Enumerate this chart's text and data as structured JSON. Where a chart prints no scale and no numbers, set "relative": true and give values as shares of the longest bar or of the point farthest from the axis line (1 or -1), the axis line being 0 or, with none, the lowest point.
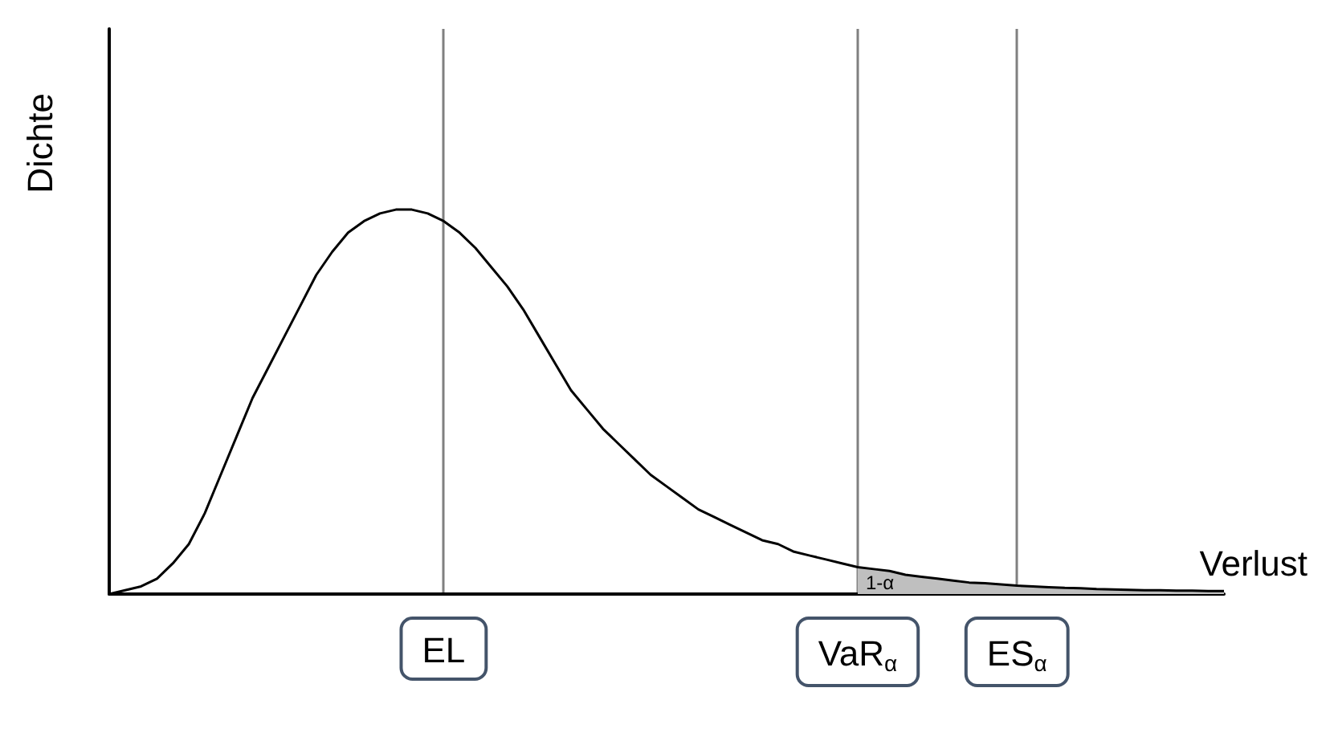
{
  "chart_data": {
    "type": "line",
    "relative": true,
    "xlabel": "Verlust",
    "ylabel": "Dichte",
    "categories": [
      null,
      null,
      null,
      null,
      null,
      null,
      null,
      null,
      null,
      null,
      null,
      null,
      null,
      null,
      null,
      null,
      null,
      null,
      null,
      null,
      null,
      "EL",
      null,
      null,
      null,
      null,
      null,
      null,
      null,
      null,
      null,
      null,
      null,
      null,
      null,
      null,
      null,
      null,
      null,
      null,
      null,
      null,
      null,
      null,
      null,
      null,
      null,
      "VaR$_{α}$",
      null,
      null,
      null,
      null,
      null,
      null,
      null,
      null,
      null,
      "ES$_{α}$",
      null,
      null,
      null,
      null,
      null,
      null,
      null,
      null,
      null,
      null,
      null,
      null,
      null
    ],
    "series": [
      {
        "color": "#000000",
        "values": [
          0,
          0.01,
          0.02,
          0.04,
          0.08,
          0.13,
          0.21,
          0.31,
          0.41,
          0.51,
          0.59,
          0.67,
          0.75,
          0.83,
          0.89,
          0.94,
          0.97,
          0.99,
          1.0,
          1.0,
          0.99,
          0.97,
          0.94,
          0.9,
          0.85,
          0.8,
          0.74,
          0.67,
          0.6,
          0.53,
          0.48,
          0.43,
          0.39,
          0.35,
          0.31,
          0.28,
          0.25,
          0.22,
          0.2,
          0.18,
          0.16,
          0.14,
          0.13,
          0.11,
          0.1,
          0.09,
          0.08,
          0.07,
          0.065,
          0.06,
          0.05,
          0.045,
          0.04,
          0.035,
          0.03,
          0.028,
          0.025,
          0.022,
          0.02,
          0.018,
          0.016,
          0.015,
          0.013,
          0.012,
          0.011,
          0.01,
          0.01,
          0.009,
          0.009,
          0.008,
          0.008
        ]
      },
      {
        "type": "area",
        "color": "#bfbfbf",
        "values": [
          null,
          null,
          null,
          null,
          null,
          null,
          null,
          null,
          null,
          null,
          null,
          null,
          null,
          null,
          null,
          null,
          null,
          null,
          null,
          null,
          null,
          null,
          null,
          null,
          null,
          null,
          null,
          null,
          null,
          null,
          null,
          null,
          null,
          null,
          null,
          null,
          null,
          null,
          null,
          null,
          null,
          null,
          null,
          null,
          null,
          null,
          null,
          0.07,
          0.065,
          0.06,
          0.05,
          0.045,
          0.04,
          0.035,
          0.03,
          0.028,
          0.025,
          0.022,
          0.02,
          0.018,
          0.016,
          0.015,
          0.013,
          0.012,
          0.011,
          0.01,
          0.01,
          0.009,
          0.009,
          0.008,
          0.008
        ]
      }
    ],
    "grid": "x",
    "marker": "none",
    "line_style": "solid",
    "annotations": [
      "1-α"
    ]
  }
}
